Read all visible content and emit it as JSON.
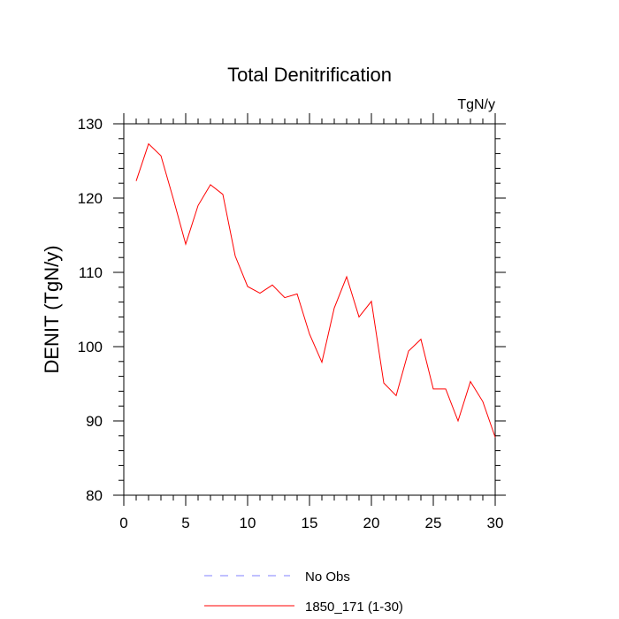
{
  "chart_data": {
    "type": "line",
    "title": "Total Denitrification",
    "units": "TgN/y",
    "ylabel": "DENIT  (TgN/y)",
    "xlabel": "",
    "xlim": [
      0,
      30
    ],
    "ylim": [
      80,
      130
    ],
    "xticks": [
      0,
      5,
      10,
      15,
      20,
      25,
      30
    ],
    "yticks": [
      80,
      90,
      100,
      110,
      120,
      130
    ],
    "grid": false,
    "legend_placement": "bottom-center",
    "series": [
      {
        "name": "1850_171 (1-30)",
        "color": "#ff0000",
        "style": "solid",
        "x": [
          1,
          2,
          3,
          4,
          5,
          6,
          7,
          8,
          9,
          10,
          11,
          12,
          13,
          14,
          15,
          16,
          17,
          18,
          19,
          20,
          21,
          22,
          23,
          24,
          25,
          26,
          27,
          28,
          29,
          30
        ],
        "y": [
          122.3,
          127.3,
          125.7,
          119.9,
          113.8,
          119.0,
          121.8,
          120.5,
          112.2,
          108.1,
          107.2,
          108.3,
          106.6,
          107.1,
          101.7,
          97.9,
          105.2,
          109.4,
          104.0,
          106.1,
          95.1,
          93.4,
          99.4,
          101.0,
          94.3,
          94.3,
          90.0,
          95.3,
          92.6,
          87.8
        ]
      }
    ],
    "legend": [
      {
        "label": "No Obs",
        "color": "#8080ff",
        "style": "dashed"
      },
      {
        "label": "1850_171 (1-30)",
        "color": "#ff0000",
        "style": "solid"
      }
    ]
  }
}
